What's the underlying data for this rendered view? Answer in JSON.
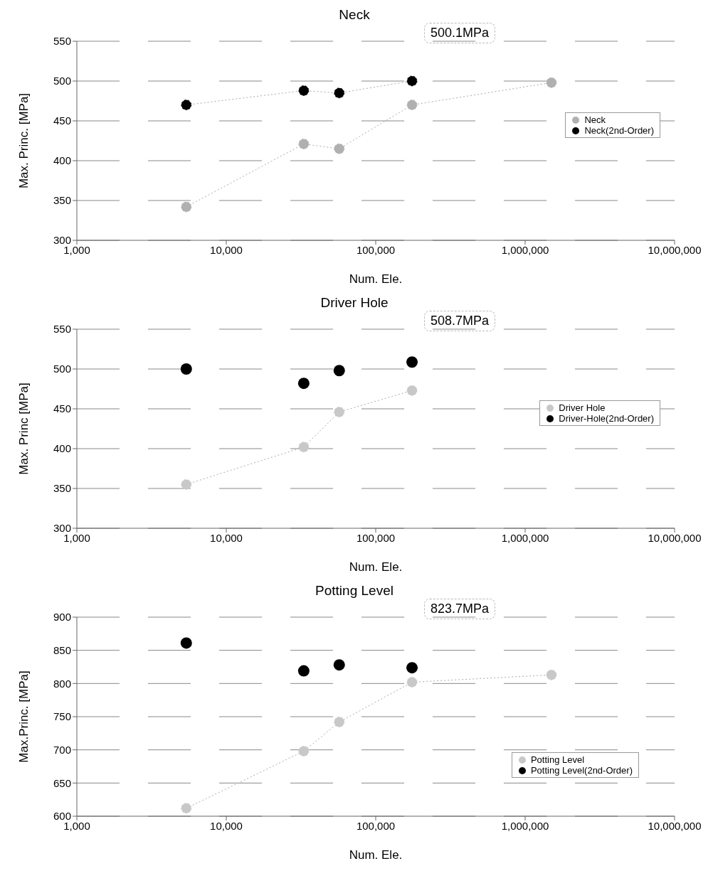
{
  "chart_data": [
    {
      "type": "line",
      "title": "Neck",
      "xlabel": "Num. Ele.",
      "ylabel": "Max. Princ. [MPa]",
      "log": "x",
      "xlim": [
        1000,
        10000000
      ],
      "xticks": [
        {
          "value": 1000,
          "label": "1,000"
        },
        {
          "value": 10000,
          "label": "10,000"
        },
        {
          "value": 100000,
          "label": "100,000"
        },
        {
          "value": 1000000,
          "label": "1,000,000"
        },
        {
          "value": 10000000,
          "label": "10,000,000"
        }
      ],
      "ylim": [
        300,
        550
      ],
      "yticks": [
        300,
        350,
        400,
        450,
        500,
        550
      ],
      "grid": "y",
      "legend": "right",
      "marker": "circle",
      "line_style": "dotted",
      "x": [
        5400,
        33000,
        57000,
        175000,
        1500000
      ],
      "series": [
        {
          "name": "Neck",
          "color": "#b0b0b0",
          "values": [
            342,
            421,
            415,
            470,
            498
          ]
        },
        {
          "name": "Neck(2nd-Order)",
          "color": "#000000",
          "values": [
            470,
            488,
            485,
            500.1,
            null
          ]
        }
      ],
      "annotations": [
        "500.1MPa"
      ]
    },
    {
      "type": "line",
      "title": "Driver Hole",
      "xlabel": "Num. Ele.",
      "ylabel": "Max. Princ [MPa]",
      "log": "x",
      "xlim": [
        1000,
        10000000
      ],
      "xticks": [
        {
          "value": 1000,
          "label": "1,000"
        },
        {
          "value": 10000,
          "label": "10,000"
        },
        {
          "value": 100000,
          "label": "100,000"
        },
        {
          "value": 1000000,
          "label": "1,000,000"
        },
        {
          "value": 10000000,
          "label": "10,000,000"
        }
      ],
      "ylim": [
        300,
        550
      ],
      "yticks": [
        300,
        350,
        400,
        450,
        500,
        550
      ],
      "grid": "y",
      "legend": "right",
      "marker": "circle",
      "line_style": "dotted",
      "x": [
        5400,
        33000,
        57000,
        175000
      ],
      "series": [
        {
          "name": "Driver Hole",
          "color": "#c8c8c8",
          "values": [
            355,
            402,
            446,
            473
          ]
        },
        {
          "name": "Driver-Hole(2nd-Order)",
          "color": "#000000",
          "type": "scatter",
          "values": [
            500,
            482,
            498,
            508.7
          ]
        }
      ],
      "annotations": [
        "508.7MPa"
      ]
    },
    {
      "type": "line",
      "title": "Potting Level",
      "xlabel": "Num. Ele.",
      "ylabel": "Max.Princ. [MPa]",
      "log": "x",
      "xlim": [
        1000,
        10000000
      ],
      "xticks": [
        {
          "value": 1000,
          "label": "1,000"
        },
        {
          "value": 10000,
          "label": "10,000"
        },
        {
          "value": 100000,
          "label": "100,000"
        },
        {
          "value": 1000000,
          "label": "1,000,000"
        },
        {
          "value": 10000000,
          "label": "10,000,000"
        }
      ],
      "ylim": [
        600,
        900
      ],
      "yticks": [
        600,
        650,
        700,
        750,
        800,
        850,
        900
      ],
      "grid": "y",
      "legend": "bottom right",
      "marker": "circle",
      "line_style": "dotted",
      "x": [
        5400,
        33000,
        57000,
        175000,
        1500000
      ],
      "series": [
        {
          "name": "Potting Level",
          "color": "#c8c8c8",
          "values": [
            612,
            698,
            742,
            802,
            813
          ]
        },
        {
          "name": "Potting Level(2nd-Order)",
          "color": "#000000",
          "type": "scatter",
          "values": [
            861,
            819,
            828,
            823.7,
            null
          ]
        }
      ],
      "annotations": [
        "823.7MPa"
      ]
    }
  ]
}
